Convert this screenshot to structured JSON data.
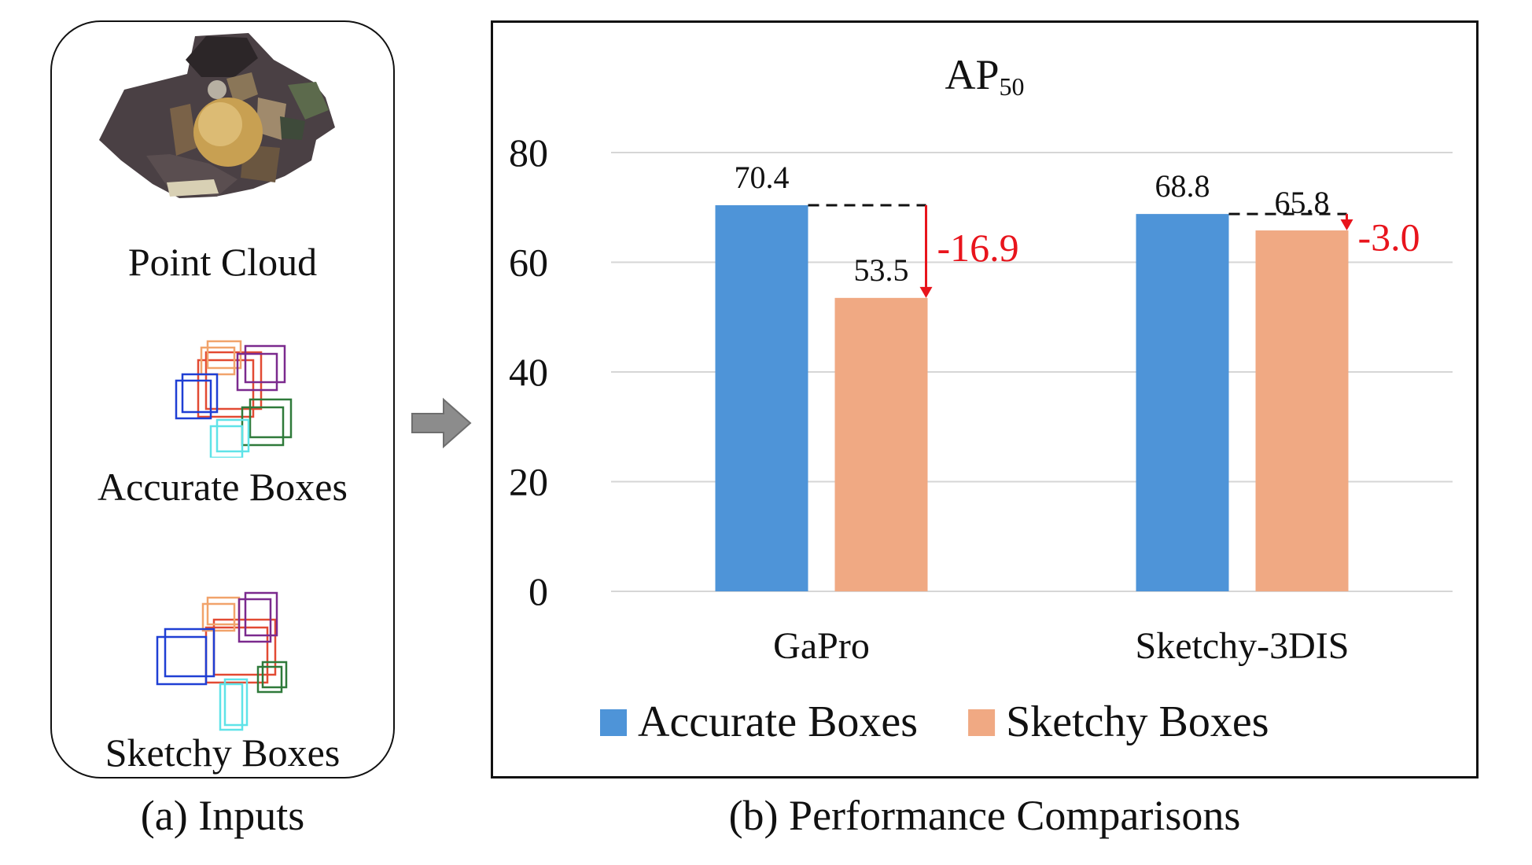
{
  "inputs": {
    "caption": "(a) Inputs",
    "items": [
      {
        "label": "Point Cloud"
      },
      {
        "label": "Accurate Boxes"
      },
      {
        "label": "Sketchy Boxes"
      }
    ]
  },
  "comparison": {
    "caption": "(b) Performance Comparisons"
  },
  "colors": {
    "accurate": "#4e94d8",
    "sketchy": "#f0a983",
    "delta": "#e8141c",
    "grid": "#d6d6d6"
  },
  "chart_data": {
    "type": "bar",
    "title": "AP",
    "title_subscript": "50",
    "categories": [
      "GaPro",
      "Sketchy-3DIS"
    ],
    "series": [
      {
        "name": "Accurate Boxes",
        "values": [
          70.4,
          68.8
        ]
      },
      {
        "name": "Sketchy Boxes",
        "values": [
          53.5,
          65.8
        ]
      }
    ],
    "value_labels": [
      [
        "70.4",
        "68.8"
      ],
      [
        "53.5",
        "65.8"
      ]
    ],
    "deltas": [
      "-16.9",
      "-3.0"
    ],
    "yticks": [
      0,
      20,
      40,
      60,
      80
    ],
    "ylim": [
      0,
      80
    ],
    "grid": true,
    "legend_position": "bottom"
  }
}
